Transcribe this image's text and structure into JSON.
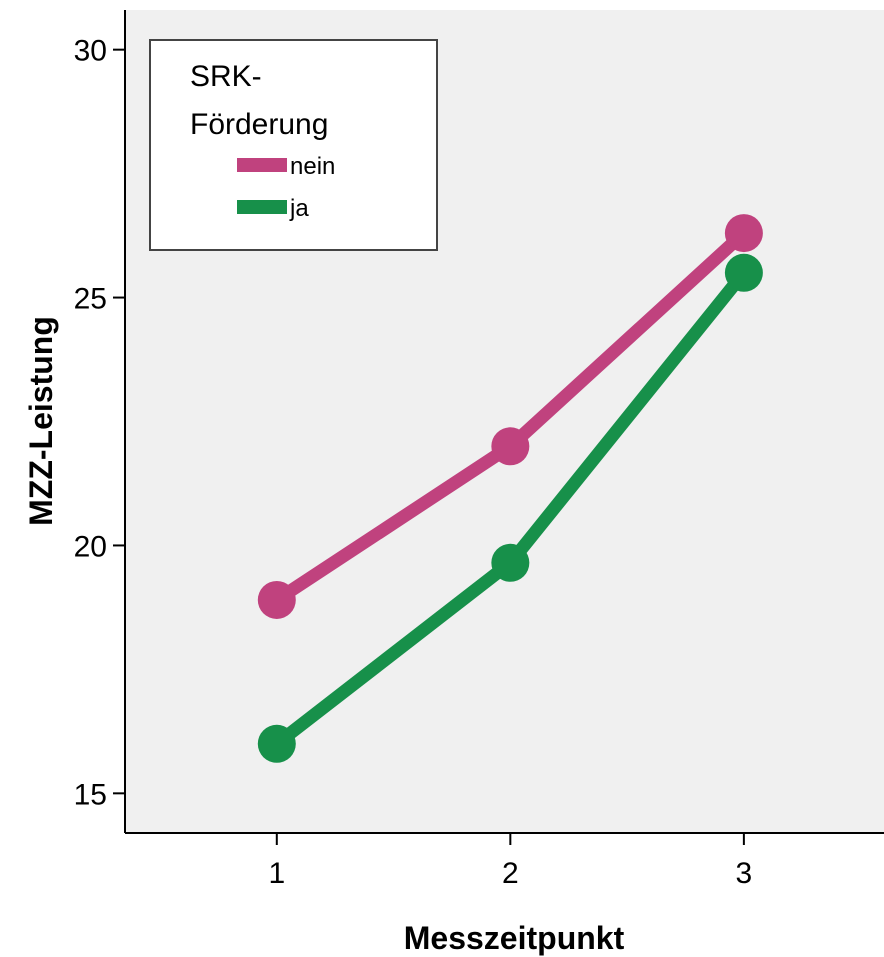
{
  "chart_data": {
    "type": "line",
    "xlabel": "Messzeitpunkt",
    "ylabel": "MZZ-Leistung",
    "categories": [
      "1",
      "2",
      "3"
    ],
    "xlim": [
      0.35,
      3.6
    ],
    "ylim": [
      14.2,
      30.8
    ],
    "yticks": [
      15,
      20,
      25,
      30
    ],
    "grid": false,
    "legend": {
      "title_line1": "SRK-",
      "title_line2": "Förderung",
      "position": "top-left"
    },
    "series": [
      {
        "name": "nein",
        "color": "#c0427e",
        "values": [
          18.9,
          22.0,
          26.3
        ]
      },
      {
        "name": "ja",
        "color": "#17904a",
        "values": [
          16.0,
          19.65,
          25.5
        ]
      }
    ]
  }
}
